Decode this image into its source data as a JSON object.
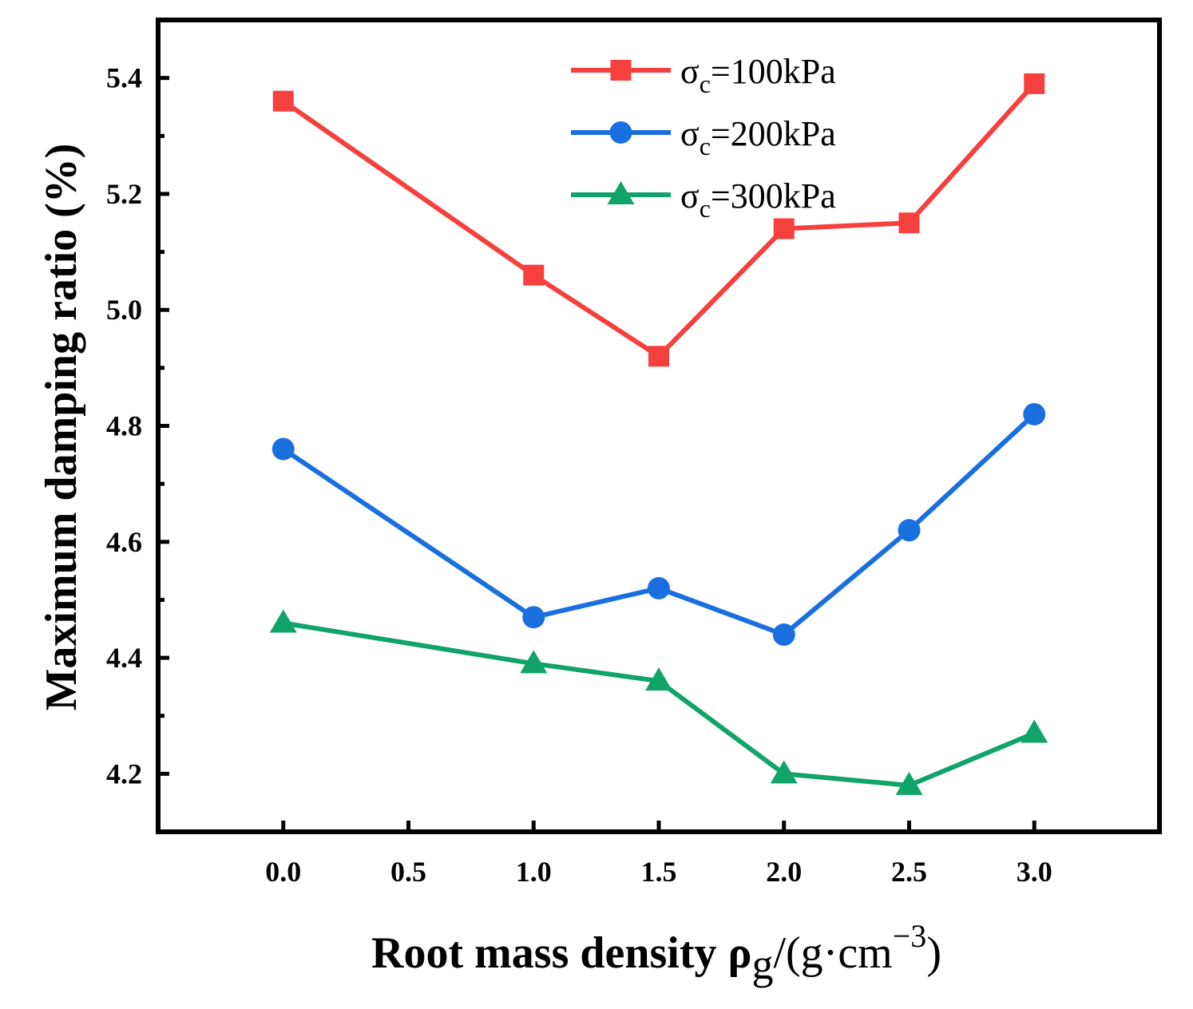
{
  "chart_data": {
    "type": "line",
    "x_positions": [
      0.5,
      2.5,
      3.5,
      4.5,
      5.5,
      6.5
    ],
    "x_ticks": [
      {
        "pos": 0.5,
        "label": "0.0"
      },
      {
        "pos": 1.5,
        "label": "0.5"
      },
      {
        "pos": 2.5,
        "label": "1.0"
      },
      {
        "pos": 3.5,
        "label": "1.5"
      },
      {
        "pos": 4.5,
        "label": "2.0"
      },
      {
        "pos": 5.5,
        "label": "2.5"
      },
      {
        "pos": 6.5,
        "label": "3.0"
      }
    ],
    "x_range": [
      -0.5,
      7.5
    ],
    "y_ticks": [
      4.2,
      4.4,
      4.6,
      4.8,
      5.0,
      5.2,
      5.4
    ],
    "y_tick_labels": [
      "4.2",
      "4.4",
      "4.6",
      "4.8",
      "5.0",
      "5.2",
      "5.4"
    ],
    "ylim": [
      4.1,
      5.5
    ],
    "xlabel": {
      "main": "Root mass density ρ",
      "sub": "g",
      "mid": "/(g·cm",
      "sup": "−3",
      "end": ")"
    },
    "ylabel": "Maximum damping ratio (%)",
    "legend_position": "top-right",
    "series": [
      {
        "name": "σc=100kPa",
        "legend": {
          "sym": "σ",
          "sub": "c",
          "rest": "=100kPa"
        },
        "marker": "square",
        "color": "#f5403e",
        "values": [
          5.36,
          5.06,
          4.92,
          5.14,
          5.15,
          5.39
        ]
      },
      {
        "name": "σc=200kPa",
        "legend": {
          "sym": "σ",
          "sub": "c",
          "rest": "=200kPa"
        },
        "marker": "circle",
        "color": "#1a6fdf",
        "values": [
          4.76,
          4.47,
          4.52,
          4.44,
          4.62,
          4.82
        ]
      },
      {
        "name": "σc=300kPa",
        "legend": {
          "sym": "σ",
          "sub": "c",
          "rest": "=300kPa"
        },
        "marker": "triangle",
        "color": "#10a36a",
        "values": [
          4.46,
          4.39,
          4.36,
          4.2,
          4.18,
          4.27
        ]
      }
    ]
  }
}
